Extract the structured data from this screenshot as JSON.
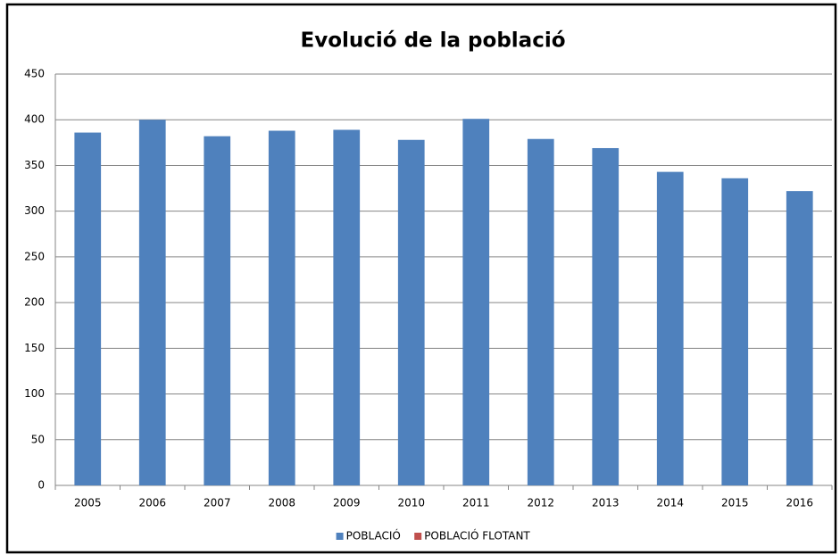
{
  "chart_data": {
    "type": "bar",
    "title": "Evolució de la població",
    "categories": [
      "2005",
      "2006",
      "2007",
      "2008",
      "2009",
      "2010",
      "2011",
      "2012",
      "2013",
      "2014",
      "2015",
      "2016"
    ],
    "series": [
      {
        "name": "POBLACIÓ",
        "color": "#4f81bd",
        "values": [
          386,
          400,
          382,
          388,
          389,
          378,
          401,
          379,
          369,
          343,
          336,
          322
        ]
      },
      {
        "name": "POBLACIÓ FLOTANT",
        "color": "#c0504d",
        "values": [
          null,
          null,
          null,
          null,
          null,
          null,
          null,
          null,
          null,
          null,
          null,
          null
        ]
      }
    ],
    "ylim": [
      0,
      450
    ],
    "yticks": [
      0,
      50,
      100,
      150,
      200,
      250,
      300,
      350,
      400,
      450
    ],
    "grid": true,
    "legend": "bottom"
  }
}
